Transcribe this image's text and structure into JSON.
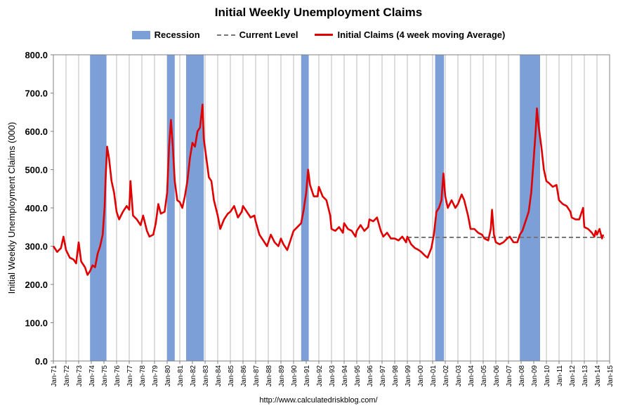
{
  "chart_data": {
    "type": "line",
    "title": "Initial Weekly Unemployment Claims",
    "ylabel": "Initial Weekly Unemployment Claims (000)",
    "xlabel": "",
    "ylim": [
      0,
      800
    ],
    "xlim": [
      1971.0,
      2015.0
    ],
    "yticks": [
      "0.0",
      "100.0",
      "200.0",
      "300.0",
      "400.0",
      "500.0",
      "600.0",
      "700.0",
      "800.0"
    ],
    "xticks": [
      "Jan-71",
      "Jan-72",
      "Jan-73",
      "Jan-74",
      "Jan-75",
      "Jan-76",
      "Jan-77",
      "Jan-78",
      "Jan-79",
      "Jan-80",
      "Jan-81",
      "Jan-82",
      "Jan-83",
      "Jan-84",
      "Jan-85",
      "Jan-86",
      "Jan-87",
      "Jan-88",
      "Jan-89",
      "Jan-90",
      "Jan-91",
      "Jan-92",
      "Jan-93",
      "Jan-94",
      "Jan-95",
      "Jan-96",
      "Jan-97",
      "Jan-98",
      "Jan-99",
      "Jan-00",
      "Jan-01",
      "Jan-02",
      "Jan-03",
      "Jan-04",
      "Jan-05",
      "Jan-06",
      "Jan-07",
      "Jan-08",
      "Jan-09",
      "Jan-10",
      "Jan-11",
      "Jan-12",
      "Jan-13",
      "Jan-14",
      "Jan-15"
    ],
    "grid": "vertical",
    "legend_placement": "top-center",
    "colors": {
      "recession": "#7b9fd6",
      "current": "#777777",
      "claims": "#e00000"
    },
    "legend": [
      {
        "label": "Recession",
        "style": "recession"
      },
      {
        "label": "Current Level",
        "style": "current"
      },
      {
        "label": "Initial Claims (4 week moving Average)",
        "style": "claims"
      }
    ],
    "recessions": [
      [
        1973.9,
        1975.2
      ],
      [
        1980.0,
        1980.6
      ],
      [
        1981.5,
        1982.9
      ],
      [
        1990.6,
        1991.2
      ],
      [
        2001.2,
        2001.9
      ],
      [
        2007.9,
        2009.5
      ]
    ],
    "current_level": {
      "value": 323,
      "x_start": 1999.0,
      "x_end": 2014.6
    },
    "series": [
      {
        "name": "Initial Claims (4 week moving Average)",
        "points": [
          [
            1971.0,
            300
          ],
          [
            1971.3,
            285
          ],
          [
            1971.6,
            295
          ],
          [
            1971.8,
            325
          ],
          [
            1972.0,
            290
          ],
          [
            1972.3,
            270
          ],
          [
            1972.6,
            265
          ],
          [
            1972.8,
            255
          ],
          [
            1973.0,
            310
          ],
          [
            1973.2,
            260
          ],
          [
            1973.5,
            245
          ],
          [
            1973.7,
            225
          ],
          [
            1973.9,
            235
          ],
          [
            1974.1,
            250
          ],
          [
            1974.3,
            245
          ],
          [
            1974.5,
            280
          ],
          [
            1974.7,
            300
          ],
          [
            1974.9,
            330
          ],
          [
            1975.05,
            400
          ],
          [
            1975.15,
            490
          ],
          [
            1975.25,
            560
          ],
          [
            1975.4,
            530
          ],
          [
            1975.6,
            470
          ],
          [
            1975.8,
            440
          ],
          [
            1976.0,
            390
          ],
          [
            1976.2,
            370
          ],
          [
            1976.5,
            390
          ],
          [
            1976.8,
            405
          ],
          [
            1977.0,
            395
          ],
          [
            1977.1,
            470
          ],
          [
            1977.3,
            380
          ],
          [
            1977.6,
            370
          ],
          [
            1977.9,
            355
          ],
          [
            1978.1,
            380
          ],
          [
            1978.4,
            340
          ],
          [
            1978.6,
            325
          ],
          [
            1978.9,
            330
          ],
          [
            1979.1,
            360
          ],
          [
            1979.3,
            410
          ],
          [
            1979.5,
            385
          ],
          [
            1979.8,
            390
          ],
          [
            1980.0,
            440
          ],
          [
            1980.15,
            560
          ],
          [
            1980.3,
            630
          ],
          [
            1980.45,
            560
          ],
          [
            1980.6,
            470
          ],
          [
            1980.8,
            420
          ],
          [
            1981.0,
            415
          ],
          [
            1981.2,
            400
          ],
          [
            1981.4,
            430
          ],
          [
            1981.6,
            470
          ],
          [
            1981.8,
            530
          ],
          [
            1982.0,
            570
          ],
          [
            1982.2,
            560
          ],
          [
            1982.4,
            600
          ],
          [
            1982.6,
            610
          ],
          [
            1982.8,
            670
          ],
          [
            1982.9,
            580
          ],
          [
            1983.1,
            530
          ],
          [
            1983.3,
            480
          ],
          [
            1983.5,
            470
          ],
          [
            1983.7,
            420
          ],
          [
            1984.0,
            380
          ],
          [
            1984.2,
            345
          ],
          [
            1984.5,
            370
          ],
          [
            1984.8,
            385
          ],
          [
            1985.0,
            390
          ],
          [
            1985.3,
            405
          ],
          [
            1985.6,
            375
          ],
          [
            1985.9,
            390
          ],
          [
            1986.0,
            405
          ],
          [
            1986.3,
            390
          ],
          [
            1986.6,
            375
          ],
          [
            1986.9,
            380
          ],
          [
            1987.0,
            365
          ],
          [
            1987.3,
            330
          ],
          [
            1987.6,
            315
          ],
          [
            1987.9,
            300
          ],
          [
            1988.2,
            330
          ],
          [
            1988.5,
            310
          ],
          [
            1988.8,
            300
          ],
          [
            1989.0,
            320
          ],
          [
            1989.2,
            305
          ],
          [
            1989.5,
            290
          ],
          [
            1989.8,
            320
          ],
          [
            1990.0,
            340
          ],
          [
            1990.3,
            350
          ],
          [
            1990.6,
            360
          ],
          [
            1990.8,
            395
          ],
          [
            1991.0,
            440
          ],
          [
            1991.15,
            500
          ],
          [
            1991.3,
            460
          ],
          [
            1991.6,
            430
          ],
          [
            1991.9,
            430
          ],
          [
            1992.0,
            455
          ],
          [
            1992.3,
            430
          ],
          [
            1992.6,
            420
          ],
          [
            1992.9,
            380
          ],
          [
            1993.0,
            345
          ],
          [
            1993.3,
            340
          ],
          [
            1993.6,
            350
          ],
          [
            1993.9,
            335
          ],
          [
            1994.0,
            360
          ],
          [
            1994.3,
            345
          ],
          [
            1994.6,
            340
          ],
          [
            1994.9,
            325
          ],
          [
            1995.0,
            340
          ],
          [
            1995.3,
            355
          ],
          [
            1995.6,
            340
          ],
          [
            1995.9,
            350
          ],
          [
            1996.0,
            370
          ],
          [
            1996.3,
            365
          ],
          [
            1996.6,
            375
          ],
          [
            1996.9,
            340
          ],
          [
            1997.1,
            325
          ],
          [
            1997.4,
            335
          ],
          [
            1997.7,
            320
          ],
          [
            1998.0,
            320
          ],
          [
            1998.3,
            315
          ],
          [
            1998.6,
            325
          ],
          [
            1998.9,
            310
          ],
          [
            1999.0,
            325
          ],
          [
            1999.3,
            305
          ],
          [
            1999.6,
            295
          ],
          [
            1999.9,
            290
          ],
          [
            2000.1,
            285
          ],
          [
            2000.4,
            275
          ],
          [
            2000.6,
            270
          ],
          [
            2000.9,
            295
          ],
          [
            2001.1,
            330
          ],
          [
            2001.3,
            390
          ],
          [
            2001.5,
            400
          ],
          [
            2001.7,
            420
          ],
          [
            2001.85,
            490
          ],
          [
            2002.0,
            430
          ],
          [
            2002.2,
            400
          ],
          [
            2002.5,
            420
          ],
          [
            2002.8,
            400
          ],
          [
            2003.0,
            410
          ],
          [
            2003.3,
            435
          ],
          [
            2003.5,
            420
          ],
          [
            2003.8,
            380
          ],
          [
            2004.0,
            345
          ],
          [
            2004.3,
            345
          ],
          [
            2004.6,
            335
          ],
          [
            2004.9,
            330
          ],
          [
            2005.1,
            320
          ],
          [
            2005.4,
            315
          ],
          [
            2005.6,
            345
          ],
          [
            2005.7,
            395
          ],
          [
            2005.85,
            330
          ],
          [
            2006.0,
            310
          ],
          [
            2006.3,
            305
          ],
          [
            2006.6,
            310
          ],
          [
            2006.9,
            320
          ],
          [
            2007.1,
            325
          ],
          [
            2007.4,
            310
          ],
          [
            2007.7,
            310
          ],
          [
            2007.9,
            330
          ],
          [
            2008.1,
            340
          ],
          [
            2008.3,
            360
          ],
          [
            2008.6,
            390
          ],
          [
            2008.8,
            440
          ],
          [
            2009.0,
            530
          ],
          [
            2009.15,
            600
          ],
          [
            2009.25,
            660
          ],
          [
            2009.4,
            610
          ],
          [
            2009.6,
            560
          ],
          [
            2009.8,
            500
          ],
          [
            2010.0,
            470
          ],
          [
            2010.2,
            465
          ],
          [
            2010.5,
            455
          ],
          [
            2010.8,
            460
          ],
          [
            2011.0,
            420
          ],
          [
            2011.3,
            410
          ],
          [
            2011.6,
            405
          ],
          [
            2011.9,
            390
          ],
          [
            2012.0,
            375
          ],
          [
            2012.3,
            370
          ],
          [
            2012.6,
            370
          ],
          [
            2012.9,
            400
          ],
          [
            2013.0,
            350
          ],
          [
            2013.3,
            345
          ],
          [
            2013.6,
            335
          ],
          [
            2013.8,
            325
          ],
          [
            2013.9,
            340
          ],
          [
            2014.0,
            330
          ],
          [
            2014.2,
            345
          ],
          [
            2014.4,
            320
          ],
          [
            2014.5,
            330
          ]
        ]
      }
    ]
  },
  "source_url": "http://www.calculatedriskblog.com/"
}
